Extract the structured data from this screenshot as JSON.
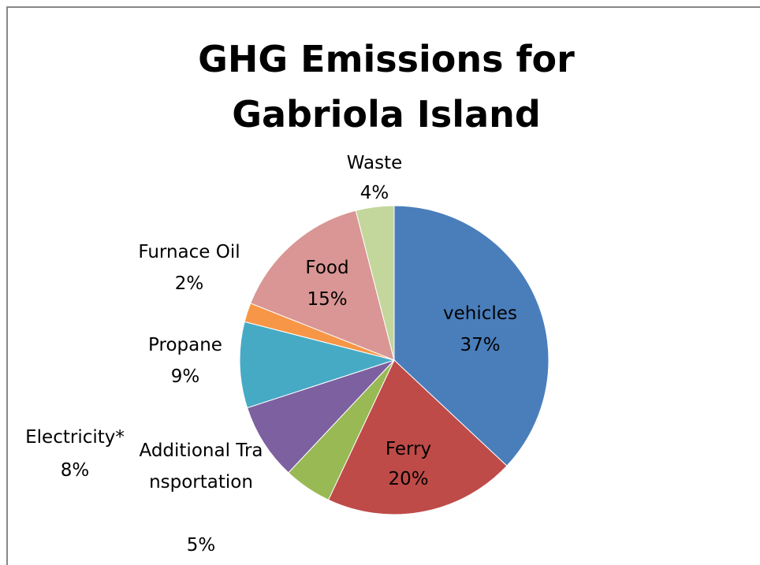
{
  "chart_data": {
    "type": "pie",
    "title": "GHG Emissions for Gabriola Island",
    "categories": [
      "vehicles",
      "Ferry",
      "Additional Transportation",
      "Electricity*",
      "Propane",
      "Furnace Oil",
      "Food",
      "Waste"
    ],
    "values": [
      37,
      20,
      5,
      8,
      9,
      2,
      15,
      4
    ],
    "value_labels": [
      "37%",
      "20%",
      "5%",
      "8%",
      "9%",
      "2%",
      "15%",
      "4%"
    ],
    "colors": [
      "#4a7ebb",
      "#be4b48",
      "#98b954",
      "#7d60a0",
      "#46aac5",
      "#f79646",
      "#d99694",
      "#c3d69b"
    ]
  }
}
